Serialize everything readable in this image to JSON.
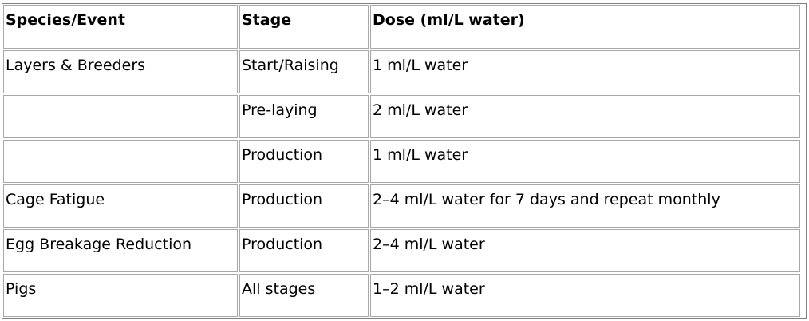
{
  "table": {
    "headers": [
      "Species/Event",
      "Stage",
      "Dose (ml/L water)"
    ],
    "rows": [
      [
        "Layers & Breeders",
        "Start/Raising",
        "1 ml/L water"
      ],
      [
        "",
        "Pre-laying",
        "2 ml/L water"
      ],
      [
        "",
        "Production",
        "1 ml/L water"
      ],
      [
        "Cage Fatigue",
        "Production",
        "2–4 ml/L water for 7 days and repeat monthly"
      ],
      [
        "Egg Breakage Reduction",
        "Production",
        "2–4 ml/L water"
      ],
      [
        "Pigs",
        "All stages",
        "1–2 ml/L water"
      ]
    ]
  }
}
